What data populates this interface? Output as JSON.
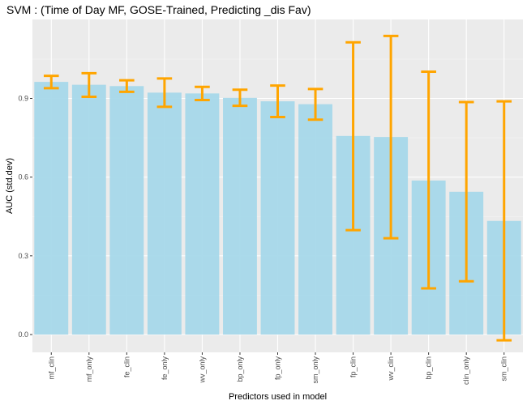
{
  "chart_data": {
    "type": "bar",
    "title": "SVM : (Time of Day MF, GOSE-Trained, Predicting _dis Fav)",
    "xlabel": "Predictors used in model",
    "ylabel": "AUC (std.dev)",
    "categories": [
      "mf_clin",
      "mf_only",
      "fe_clin",
      "fe_only",
      "wv_only",
      "bp_only",
      "fp_only",
      "sm_only",
      "fp_clin",
      "wv_clin",
      "bp_clin",
      "clin_only",
      "sm_clin"
    ],
    "values": [
      0.963,
      0.952,
      0.947,
      0.922,
      0.919,
      0.902,
      0.889,
      0.878,
      0.757,
      0.753,
      0.587,
      0.544,
      0.433
    ],
    "error_low": [
      0.939,
      0.906,
      0.925,
      0.868,
      0.894,
      0.872,
      0.829,
      0.819,
      0.398,
      0.367,
      0.176,
      0.203,
      -0.022
    ],
    "error_high": [
      0.986,
      0.996,
      0.969,
      0.976,
      0.944,
      0.933,
      0.949,
      0.936,
      1.114,
      1.138,
      1.002,
      0.886,
      0.889
    ],
    "yticks": [
      "0.0",
      "0.3",
      "0.6",
      "0.9"
    ],
    "ytick_values": [
      0.0,
      0.3,
      0.6,
      0.9
    ],
    "ylim": [
      -0.08,
      1.18
    ],
    "grid": true,
    "legend": "none",
    "colors": {
      "bar": "#a6d8ea",
      "errorbar": "#ffa500",
      "panel": "#ebebeb",
      "grid_major": "#ffffff",
      "grid_minor": "#f5f5f5"
    }
  }
}
